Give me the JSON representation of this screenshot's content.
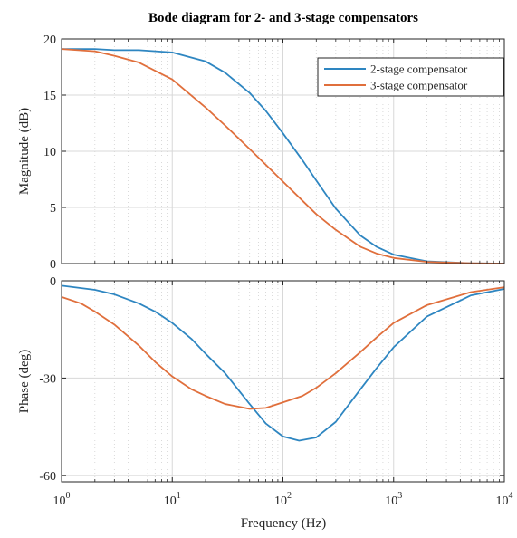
{
  "chart_data": {
    "type": "line",
    "title": "Bode diagram for 2- and 3-stage compensators",
    "xlabel": "Frequency  (Hz)",
    "x_scale": "log",
    "xlim": [
      1,
      10000
    ],
    "x_ticks": [
      1,
      10,
      100,
      1000,
      10000
    ],
    "x_tick_base": "10",
    "x_tick_exponents": [
      "0",
      "1",
      "2",
      "3",
      "4"
    ],
    "grid": true,
    "legend": {
      "placement": "top-right",
      "entries": [
        "2-stage compensator",
        "3-stage compensator"
      ]
    },
    "colors": {
      "2-stage": "#2e86c1",
      "3-stage": "#e06f3c"
    },
    "panels": [
      {
        "name": "magnitude",
        "ylabel": "Magnitude (dB)",
        "ylim": [
          0,
          20
        ],
        "y_ticks": [
          0,
          5,
          10,
          15,
          20
        ],
        "series": [
          {
            "name": "2-stage compensator",
            "color": "#2e86c1",
            "x": [
              1,
              2,
              3,
              5,
              10,
              20,
              30,
              50,
              70,
              100,
              150,
              200,
              300,
              500,
              700,
              1000,
              2000,
              5000,
              10000
            ],
            "y": [
              19.1,
              19.1,
              19.0,
              19.0,
              18.8,
              18.0,
              17.0,
              15.2,
              13.6,
              11.6,
              9.2,
              7.4,
              4.9,
              2.5,
              1.5,
              0.8,
              0.2,
              0.03,
              0.0
            ]
          },
          {
            "name": "3-stage compensator",
            "color": "#e06f3c",
            "x": [
              1,
              2,
              3,
              5,
              10,
              20,
              30,
              50,
              70,
              100,
              150,
              200,
              300,
              500,
              700,
              1000,
              2000,
              5000,
              10000
            ],
            "y": [
              19.1,
              18.9,
              18.5,
              17.9,
              16.4,
              13.9,
              12.3,
              10.2,
              8.8,
              7.3,
              5.6,
              4.4,
              3.0,
              1.5,
              0.9,
              0.5,
              0.15,
              0.03,
              0.0
            ]
          }
        ]
      },
      {
        "name": "phase",
        "ylabel": "Phase (deg)",
        "ylim": [
          -62,
          0
        ],
        "y_ticks": [
          -60,
          -30,
          0
        ],
        "series": [
          {
            "name": "2-stage compensator",
            "color": "#2e86c1",
            "x": [
              1,
              2,
              3,
              5,
              7,
              10,
              15,
              20,
              30,
              50,
              70,
              100,
              140,
              200,
              300,
              500,
              700,
              1000,
              2000,
              5000,
              10000
            ],
            "y": [
              -1.5,
              -2.8,
              -4.2,
              -7.0,
              -9.5,
              -13.0,
              -18.0,
              -22.5,
              -28.5,
              -38.0,
              -44.0,
              -48.0,
              -49.3,
              -48.3,
              -43.5,
              -33.5,
              -27.0,
              -20.5,
              -11.0,
              -4.5,
              -2.5
            ]
          },
          {
            "name": "3-stage compensator",
            "color": "#e06f3c",
            "x": [
              1,
              1.5,
              2,
              3,
              5,
              7,
              10,
              15,
              20,
              30,
              50,
              70,
              100,
              150,
              200,
              300,
              500,
              700,
              1000,
              2000,
              5000,
              10000
            ],
            "y": [
              -5.0,
              -7.0,
              -9.5,
              -13.5,
              -20.0,
              -25.0,
              -29.5,
              -33.5,
              -35.5,
              -38.0,
              -39.5,
              -39.2,
              -37.5,
              -35.5,
              -33.0,
              -28.5,
              -22.0,
              -17.5,
              -13.0,
              -7.5,
              -3.5,
              -2.0
            ]
          }
        ]
      }
    ]
  }
}
